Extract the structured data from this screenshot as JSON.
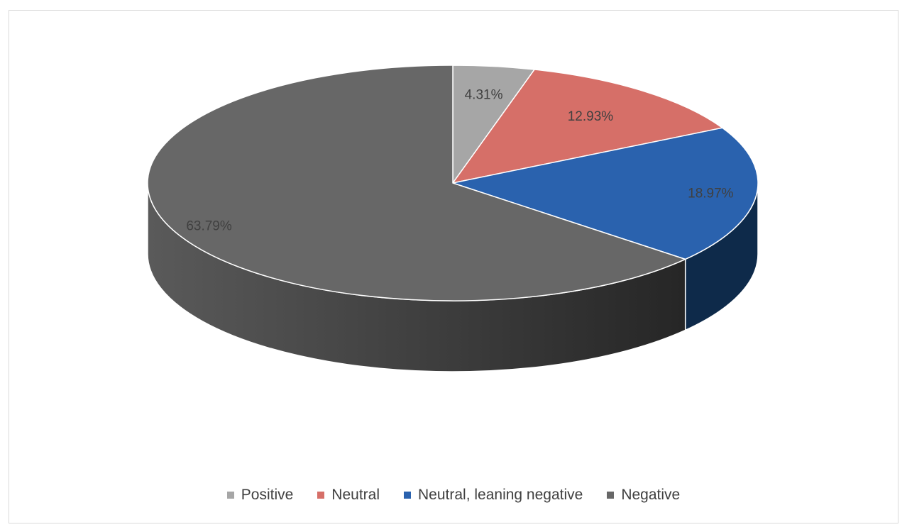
{
  "chart_data": {
    "type": "pie",
    "title": "",
    "categories": [
      "Positive",
      "Neutral",
      "Neutral, leaning negative",
      "Negative"
    ],
    "values": [
      4.31,
      12.93,
      18.97,
      63.79
    ],
    "unit": "%",
    "data_labels": [
      "4.31%",
      "12.93%",
      "18.97%",
      "63.79%"
    ],
    "colors": [
      "#a6a6a6",
      "#d66f68",
      "#2a62ae",
      "#676767"
    ],
    "side_colors": [
      "#7f7f7f",
      "#b04b45",
      "#0e2a4a",
      "#3a3a3a"
    ],
    "legend_position": "bottom",
    "style": "3d"
  }
}
